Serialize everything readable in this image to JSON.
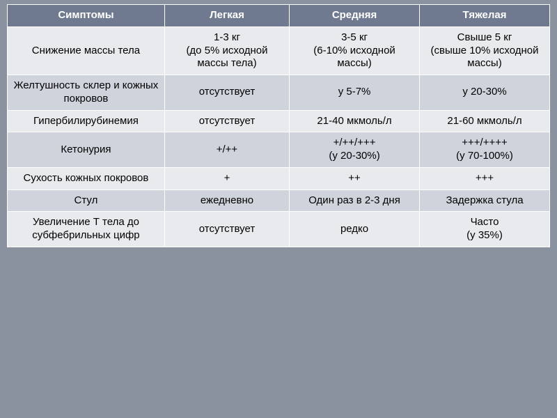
{
  "table": {
    "header_bg": "#6f7a90",
    "header_fg": "#ffffff",
    "band_a_bg": "#e9eaee",
    "band_b_bg": "#cfd3dc",
    "border_color": "#ffffff",
    "font_family": "Verdana",
    "font_size_pt": 11,
    "columns": [
      {
        "label": "Симптомы",
        "width_pct": 29
      },
      {
        "label": "Легкая",
        "width_pct": 23
      },
      {
        "label": "Средняя",
        "width_pct": 24
      },
      {
        "label": "Тяжелая",
        "width_pct": 24
      }
    ],
    "rows": [
      {
        "symptom": "Снижение массы тела",
        "mild": "1-3 кг\n(до 5% исходной массы тела)",
        "medium": "3-5 кг\n(6-10% исходной массы)",
        "severe": "Свыше 5 кг\n(свыше 10% исходной массы)"
      },
      {
        "symptom": "Желтушность склер и кожных покровов",
        "mild": "отсутствует",
        "medium": "у 5-7%",
        "severe": "у 20-30%"
      },
      {
        "symptom": "Гипербилирубинемия",
        "mild": "отсутствует",
        "medium": "21-40 мкмоль/л",
        "severe": "21-60 мкмоль/л"
      },
      {
        "symptom": "Кетонурия",
        "mild": "+/++",
        "medium": "+/++/+++\n(у 20-30%)",
        "severe": "+++/++++\n(у 70-100%)"
      },
      {
        "symptom": "Сухость кожных покровов",
        "mild": "+",
        "medium": "++",
        "severe": "+++"
      },
      {
        "symptom": "Стул",
        "mild": "ежедневно",
        "medium": "Один раз в 2-3 дня",
        "severe": "Задержка стула"
      },
      {
        "symptom": "Увеличение Т тела до субфебрильных цифр",
        "mild": "отсутствует",
        "medium": "редко",
        "severe": "Часто\n(у 35%)"
      }
    ]
  }
}
